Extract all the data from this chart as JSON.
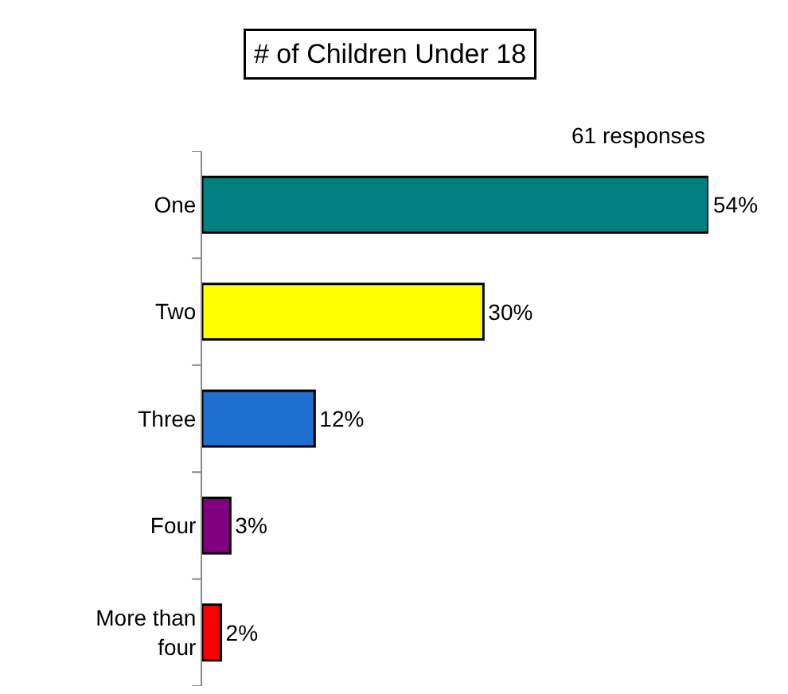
{
  "chart_data": {
    "type": "bar",
    "orientation": "horizontal",
    "title": "# of Children Under 18",
    "annotations": [
      "61 responses"
    ],
    "categories": [
      "One",
      "Two",
      "Three",
      "Four",
      "More than four"
    ],
    "values": [
      54,
      30,
      12,
      3,
      2
    ],
    "value_labels": [
      "54%",
      "30%",
      "12%",
      "3%",
      "2%"
    ],
    "colors": [
      "#008080",
      "#ffff00",
      "#1f6fd0",
      "#800080",
      "#ff0000"
    ]
  }
}
